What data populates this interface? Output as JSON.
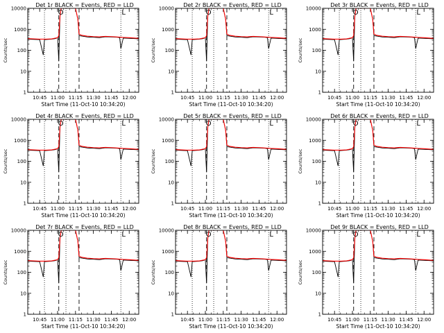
{
  "colors": {
    "events": "#000000",
    "lld": "#ff0000",
    "background": "#ffffff"
  },
  "shared": {
    "ylabel": "Counts/sec",
    "xlabel": "Start Time (11-Oct-10 10:34:20)",
    "yscale": "log",
    "ylim": [
      1,
      10000
    ],
    "y_ticks": [
      {
        "value": 1,
        "label": "1"
      },
      {
        "value": 10,
        "label": "10"
      },
      {
        "value": 100,
        "label": "100"
      },
      {
        "value": 1000,
        "label": "1000"
      },
      {
        "value": 10000,
        "label": "10000"
      }
    ],
    "xlim": [
      "10:35",
      "12:08"
    ],
    "x_ticks": [
      "10:45",
      "11:00",
      "11:15",
      "11:30",
      "11:45",
      "12:00"
    ],
    "dotted_markers": [
      "10:49",
      "11:07",
      "11:53"
    ],
    "dashed_markers": [
      "11:01",
      "11:18"
    ],
    "annotations": [
      "O",
      "L"
    ],
    "events_series": {
      "x": [
        "10:35",
        "10:40",
        "10:45",
        "10:48",
        "10:49",
        "10:52",
        "10:55",
        "10:58",
        "11:00",
        "11:01",
        "11:02",
        "11:03",
        "11:04",
        "11:10",
        "11:15",
        "11:17",
        "11:18",
        "11:20",
        "11:25",
        "11:30",
        "11:35",
        "11:40",
        "11:45",
        "11:50",
        "11:52",
        "11:53",
        "11:55",
        "12:00",
        "12:05",
        "12:08"
      ],
      "y": [
        340,
        330,
        320,
        60,
        320,
        330,
        340,
        360,
        400,
        30,
        4000,
        10000,
        10000,
        10000,
        10000,
        3000,
        500,
        480,
        430,
        420,
        400,
        440,
        430,
        420,
        400,
        120,
        380,
        370,
        360,
        350
      ]
    },
    "lld_series": {
      "x": [
        "10:35",
        "10:40",
        "10:45",
        "10:50",
        "10:55",
        "11:00",
        "11:01",
        "11:02",
        "11:03",
        "11:04",
        "11:10",
        "11:15",
        "11:17",
        "11:18",
        "11:20",
        "11:25",
        "11:30",
        "11:35",
        "11:40",
        "11:45",
        "11:50",
        "11:55",
        "12:00",
        "12:05",
        "12:08"
      ],
      "y": [
        360,
        350,
        340,
        340,
        350,
        400,
        500,
        4000,
        10000,
        10000,
        10000,
        10000,
        3000,
        600,
        520,
        470,
        450,
        440,
        460,
        450,
        430,
        410,
        400,
        380,
        370
      ]
    }
  },
  "chart_data": [
    {
      "type": "line",
      "title": "Det 1r BLACK = Events, RED = LLD",
      "xlabel": "Start Time (11-Oct-10 10:34:20)",
      "ylabel": "Counts/sec",
      "series": [
        {
          "name": "Events"
        },
        {
          "name": "LLD"
        }
      ]
    },
    {
      "type": "line",
      "title": "Det 2r BLACK = Events, RED = LLD",
      "xlabel": "Start Time (11-Oct-10 10:34:20)",
      "ylabel": "Counts/sec",
      "series": [
        {
          "name": "Events"
        },
        {
          "name": "LLD"
        }
      ]
    },
    {
      "type": "line",
      "title": "Det 3r BLACK = Events, RED = LLD",
      "xlabel": "Start Time (11-Oct-10 10:34:20)",
      "ylabel": "Counts/sec",
      "series": [
        {
          "name": "Events"
        },
        {
          "name": "LLD"
        }
      ]
    },
    {
      "type": "line",
      "title": "Det 4r BLACK = Events, RED = LLD",
      "xlabel": "Start Time (11-Oct-10 10:34:20)",
      "ylabel": "Counts/sec",
      "series": [
        {
          "name": "Events"
        },
        {
          "name": "LLD"
        }
      ]
    },
    {
      "type": "line",
      "title": "Det 5r BLACK = Events, RED = LLD",
      "xlabel": "Start Time (11-Oct-10 10:34:20)",
      "ylabel": "Counts/sec",
      "series": [
        {
          "name": "Events"
        },
        {
          "name": "LLD"
        }
      ]
    },
    {
      "type": "line",
      "title": "Det 6r BLACK = Events, RED = LLD",
      "xlabel": "Start Time (11-Oct-10 10:34:20)",
      "ylabel": "Counts/sec",
      "series": [
        {
          "name": "Events"
        },
        {
          "name": "LLD"
        }
      ]
    },
    {
      "type": "line",
      "title": "Det 7r BLACK = Events, RED = LLD",
      "xlabel": "Start Time (11-Oct-10 10:34:20)",
      "ylabel": "Counts/sec",
      "series": [
        {
          "name": "Events"
        },
        {
          "name": "LLD"
        }
      ]
    },
    {
      "type": "line",
      "title": "Det 8r BLACK = Events, RED = LLD",
      "xlabel": "Start Time (11-Oct-10 10:34:20)",
      "ylabel": "Counts/sec",
      "series": [
        {
          "name": "Events"
        },
        {
          "name": "LLD"
        }
      ]
    },
    {
      "type": "line",
      "title": "Det 9r BLACK = Events, RED = LLD",
      "xlabel": "Start Time (11-Oct-10 10:34:20)",
      "ylabel": "Counts/sec",
      "series": [
        {
          "name": "Events"
        },
        {
          "name": "LLD"
        }
      ]
    }
  ]
}
